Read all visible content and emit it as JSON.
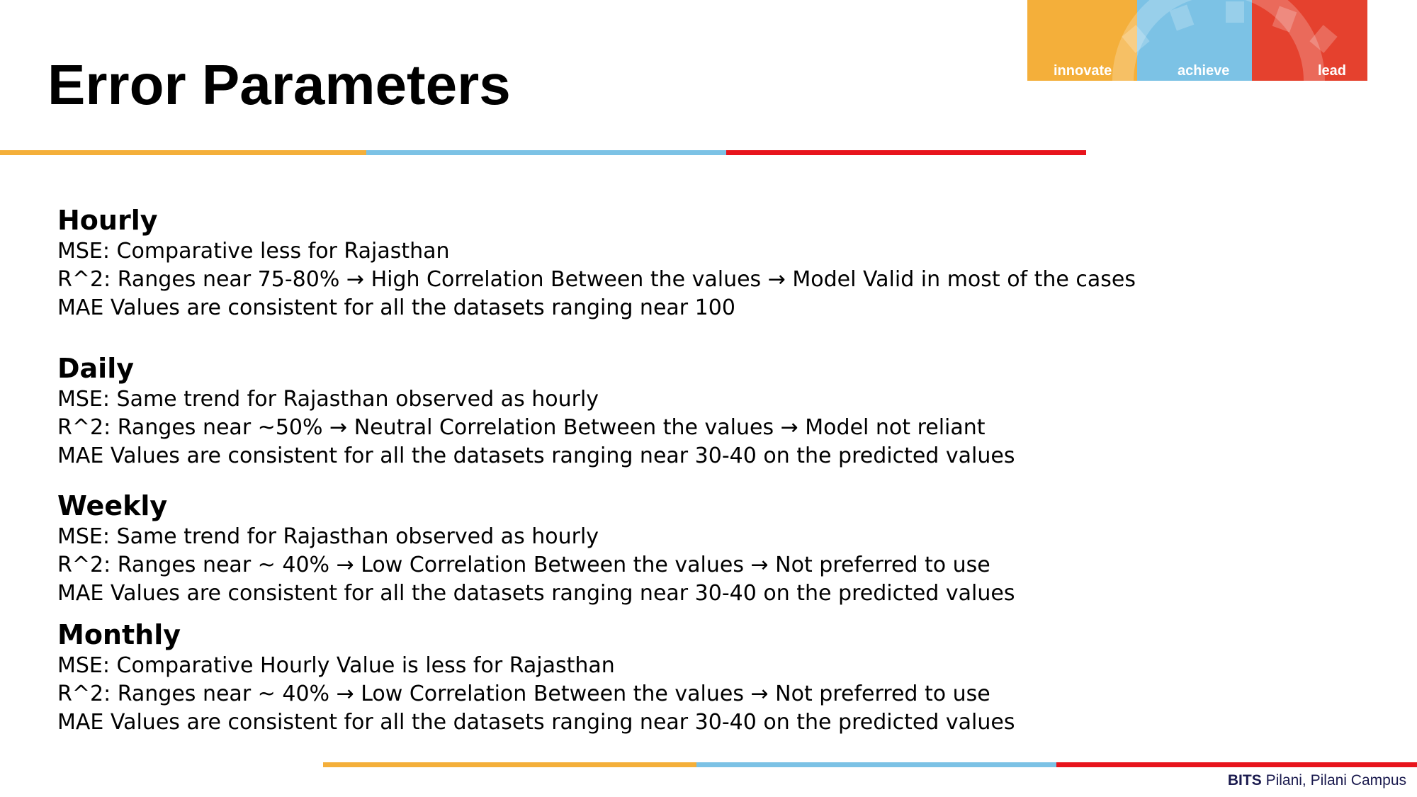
{
  "slide": {
    "title": "Error Parameters"
  },
  "logo": {
    "words": [
      "innovate",
      "achieve",
      "lead"
    ],
    "colors": [
      "#f4af3a",
      "#7cc2e5",
      "#e5412e"
    ]
  },
  "sections": [
    {
      "heading": "Hourly",
      "lines": [
        "MSE: Comparative less for Rajasthan",
        "R^2: Ranges near 75-80% → High Correlation Between the values → Model Valid in most of the cases",
        "MAE Values are consistent for all the datasets ranging near 100"
      ]
    },
    {
      "heading": "Daily",
      "lines": [
        "MSE: Same trend for Rajasthan observed as hourly",
        "R^2: Ranges near ~50% → Neutral Correlation Between the values → Model not reliant",
        "MAE Values are consistent for all the datasets ranging near 30-40 on the predicted values"
      ]
    },
    {
      "heading": "Weekly",
      "lines": [
        "MSE: Same trend for Rajasthan observed as hourly",
        "R^2: Ranges near ~ 40% → Low Correlation Between the values → Not preferred to use",
        "MAE Values are consistent for all the datasets ranging near 30-40 on the predicted values"
      ]
    },
    {
      "heading": "Monthly",
      "lines": [
        "MSE: Comparative Hourly Value is less for Rajasthan",
        "R^2: Ranges near ~ 40% → Low Correlation Between the values → Not preferred to use",
        "MAE Values are consistent for all the datasets ranging near 30-40 on the predicted values"
      ]
    }
  ],
  "footer": {
    "brand": "BITS",
    "campus": " Pilani, Pilani Campus"
  },
  "colors": {
    "orange": "#f4af3a",
    "blue": "#7cc2e5",
    "red": "#e8141c",
    "footer_text": "#1a1a4e"
  }
}
